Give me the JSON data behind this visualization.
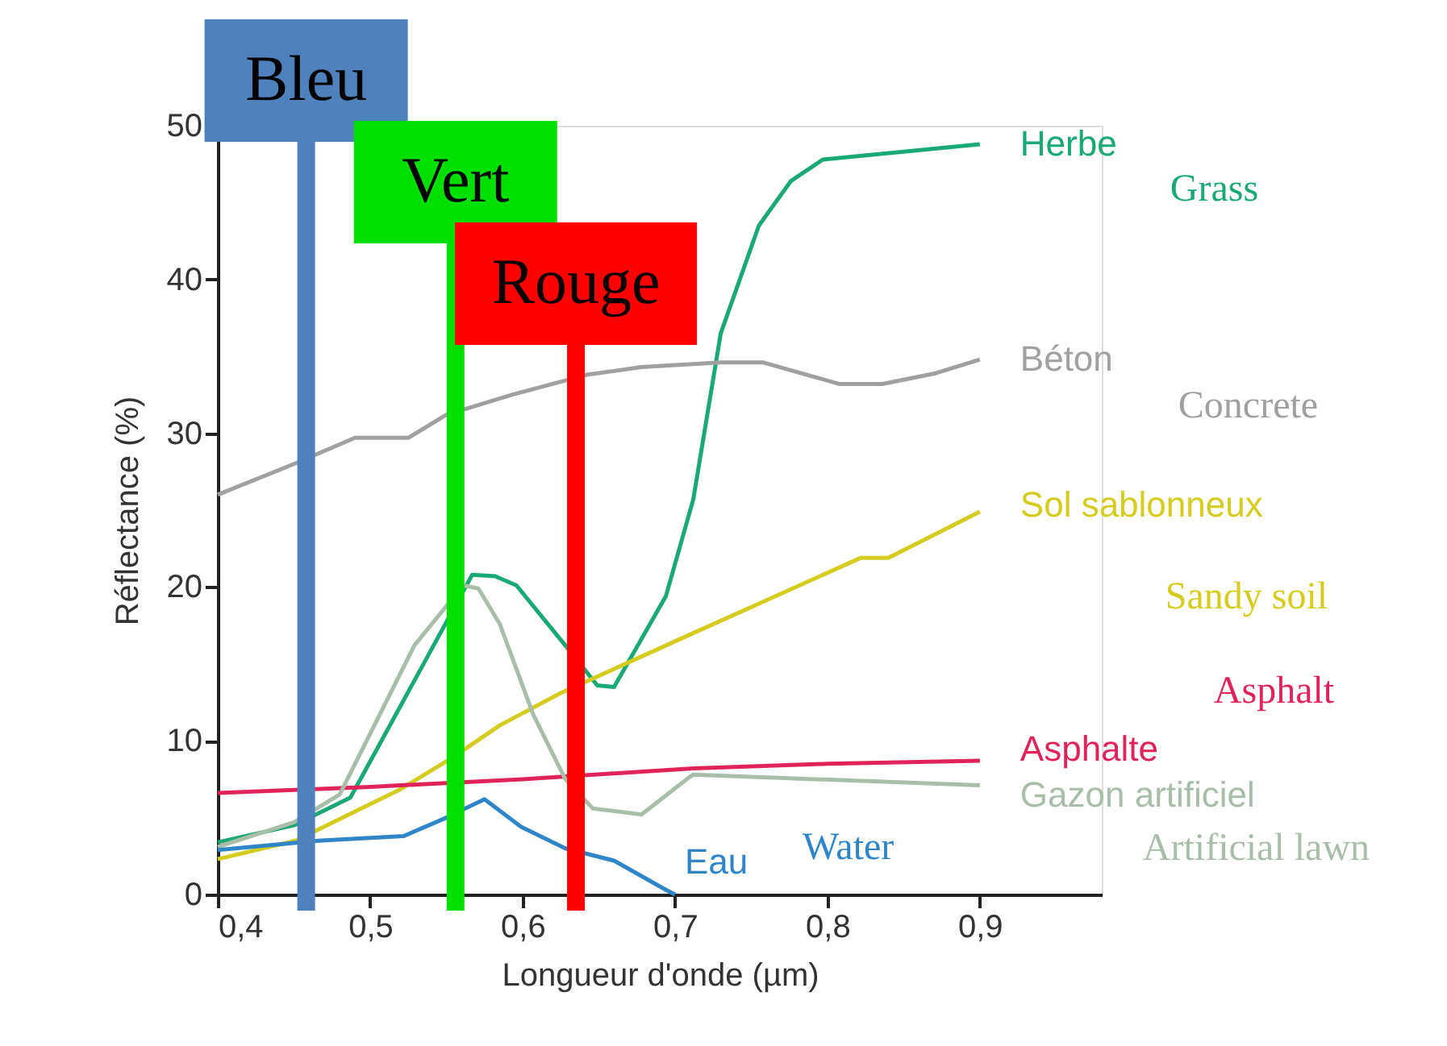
{
  "chart_data": {
    "type": "line",
    "xlabel": "Longueur d'onde (µm)",
    "ylabel": "Réflectance (%)",
    "xlim": [
      0.4,
      0.98
    ],
    "ylim": [
      0,
      50
    ],
    "xticks": [
      {
        "value": 0.4,
        "label": "0,4"
      },
      {
        "value": 0.5,
        "label": "0,5"
      },
      {
        "value": 0.6,
        "label": "0,6"
      },
      {
        "value": 0.7,
        "label": "0,7"
      },
      {
        "value": 0.8,
        "label": "0,8"
      },
      {
        "value": 0.9,
        "label": "0,9"
      }
    ],
    "yticks": [
      0,
      10,
      20,
      30,
      40,
      50
    ],
    "grid": false,
    "line_style": "solid",
    "marker": "none",
    "series": [
      {
        "name": "Herbe",
        "color": "#1aa874",
        "x": [
          0.4,
          0.45,
          0.487,
          0.567,
          0.582,
          0.596,
          0.628,
          0.649,
          0.66,
          0.694,
          0.712,
          0.73,
          0.755,
          0.776,
          0.797,
          0.9
        ],
        "values": [
          3.4,
          4.5,
          6.3,
          20.8,
          20.7,
          20.1,
          16.2,
          13.6,
          13.5,
          19.4,
          25.7,
          36.5,
          43.5,
          46.4,
          47.8,
          48.8
        ]
      },
      {
        "name": "Béton",
        "color": "#a0a0a0",
        "x": [
          0.4,
          0.45,
          0.49,
          0.525,
          0.55,
          0.593,
          0.642,
          0.678,
          0.73,
          0.758,
          0.808,
          0.836,
          0.871,
          0.9
        ],
        "values": [
          26.0,
          28.0,
          29.7,
          29.7,
          31.2,
          32.5,
          33.8,
          34.3,
          34.6,
          34.6,
          33.2,
          33.2,
          33.9,
          34.8
        ]
      },
      {
        "name": "Sol sablonneux",
        "color": "#d4cc1e",
        "x": [
          0.4,
          0.451,
          0.519,
          0.554,
          0.585,
          0.625,
          0.712,
          0.822,
          0.84,
          0.9
        ],
        "values": [
          2.3,
          3.5,
          6.8,
          8.9,
          11.0,
          13.1,
          17.0,
          21.9,
          21.9,
          24.9
        ]
      },
      {
        "name": "Asphalte",
        "color": "#e0245a",
        "x": [
          0.4,
          0.5,
          0.6,
          0.712,
          0.8,
          0.9
        ],
        "values": [
          6.6,
          7.0,
          7.5,
          8.2,
          8.5,
          8.7
        ]
      },
      {
        "name": "Gazon artificiel",
        "color": "#a8bea8",
        "x": [
          0.4,
          0.45,
          0.48,
          0.529,
          0.561,
          0.571,
          0.585,
          0.607,
          0.628,
          0.646,
          0.678,
          0.709,
          0.712,
          0.9
        ],
        "values": [
          3.1,
          4.7,
          6.5,
          16.2,
          20.1,
          19.9,
          17.6,
          11.7,
          7.5,
          5.6,
          5.2,
          7.6,
          7.8,
          7.1
        ]
      },
      {
        "name": "Eau",
        "color": "#2e86c8",
        "x": [
          0.4,
          0.466,
          0.522,
          0.55,
          0.575,
          0.599,
          0.628,
          0.66,
          0.694,
          0.7
        ],
        "values": [
          2.9,
          3.5,
          3.8,
          5.0,
          6.2,
          4.4,
          3.0,
          2.2,
          0.3,
          0.0
        ]
      }
    ],
    "ref_lines": [
      {
        "axis": "x",
        "value": 0.458,
        "label": "Bleu",
        "color": "#4f81bd"
      },
      {
        "axis": "x",
        "value": 0.556,
        "label": "Vert",
        "color": "#00e000"
      },
      {
        "axis": "x",
        "value": 0.635,
        "label": "Rouge",
        "color": "#ff0000"
      }
    ],
    "annotations": [
      "Grass",
      "Concrete",
      "Sandy soil",
      "Asphalt",
      "Artificial lawn",
      "Water"
    ]
  }
}
